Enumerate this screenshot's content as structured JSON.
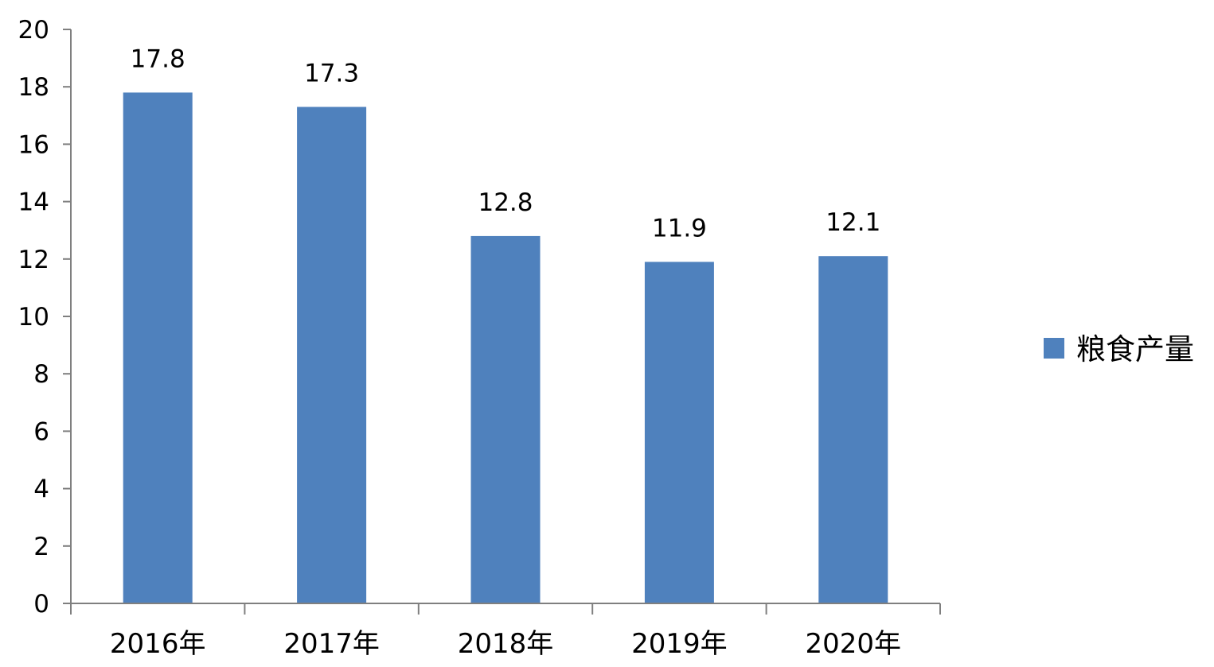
{
  "chart_data": {
    "type": "bar",
    "title": "",
    "xlabel": "",
    "ylabel": "",
    "categories": [
      "2016年",
      "2017年",
      "2018年",
      "2019年",
      "2020年"
    ],
    "series": [
      {
        "name": "粮食产量",
        "values": [
          17.8,
          17.3,
          12.8,
          11.9,
          12.1
        ],
        "data_labels": [
          "17.8",
          "17.3",
          "12.8",
          "11.9",
          "12.1"
        ],
        "color": "#4f81bd"
      }
    ],
    "ylim": [
      0,
      20
    ],
    "y_ticks": [
      0,
      2,
      4,
      6,
      8,
      10,
      12,
      14,
      16,
      18,
      20
    ],
    "grid": false,
    "legend": {
      "position": "right"
    },
    "axis_color": "#7f7f7f"
  }
}
